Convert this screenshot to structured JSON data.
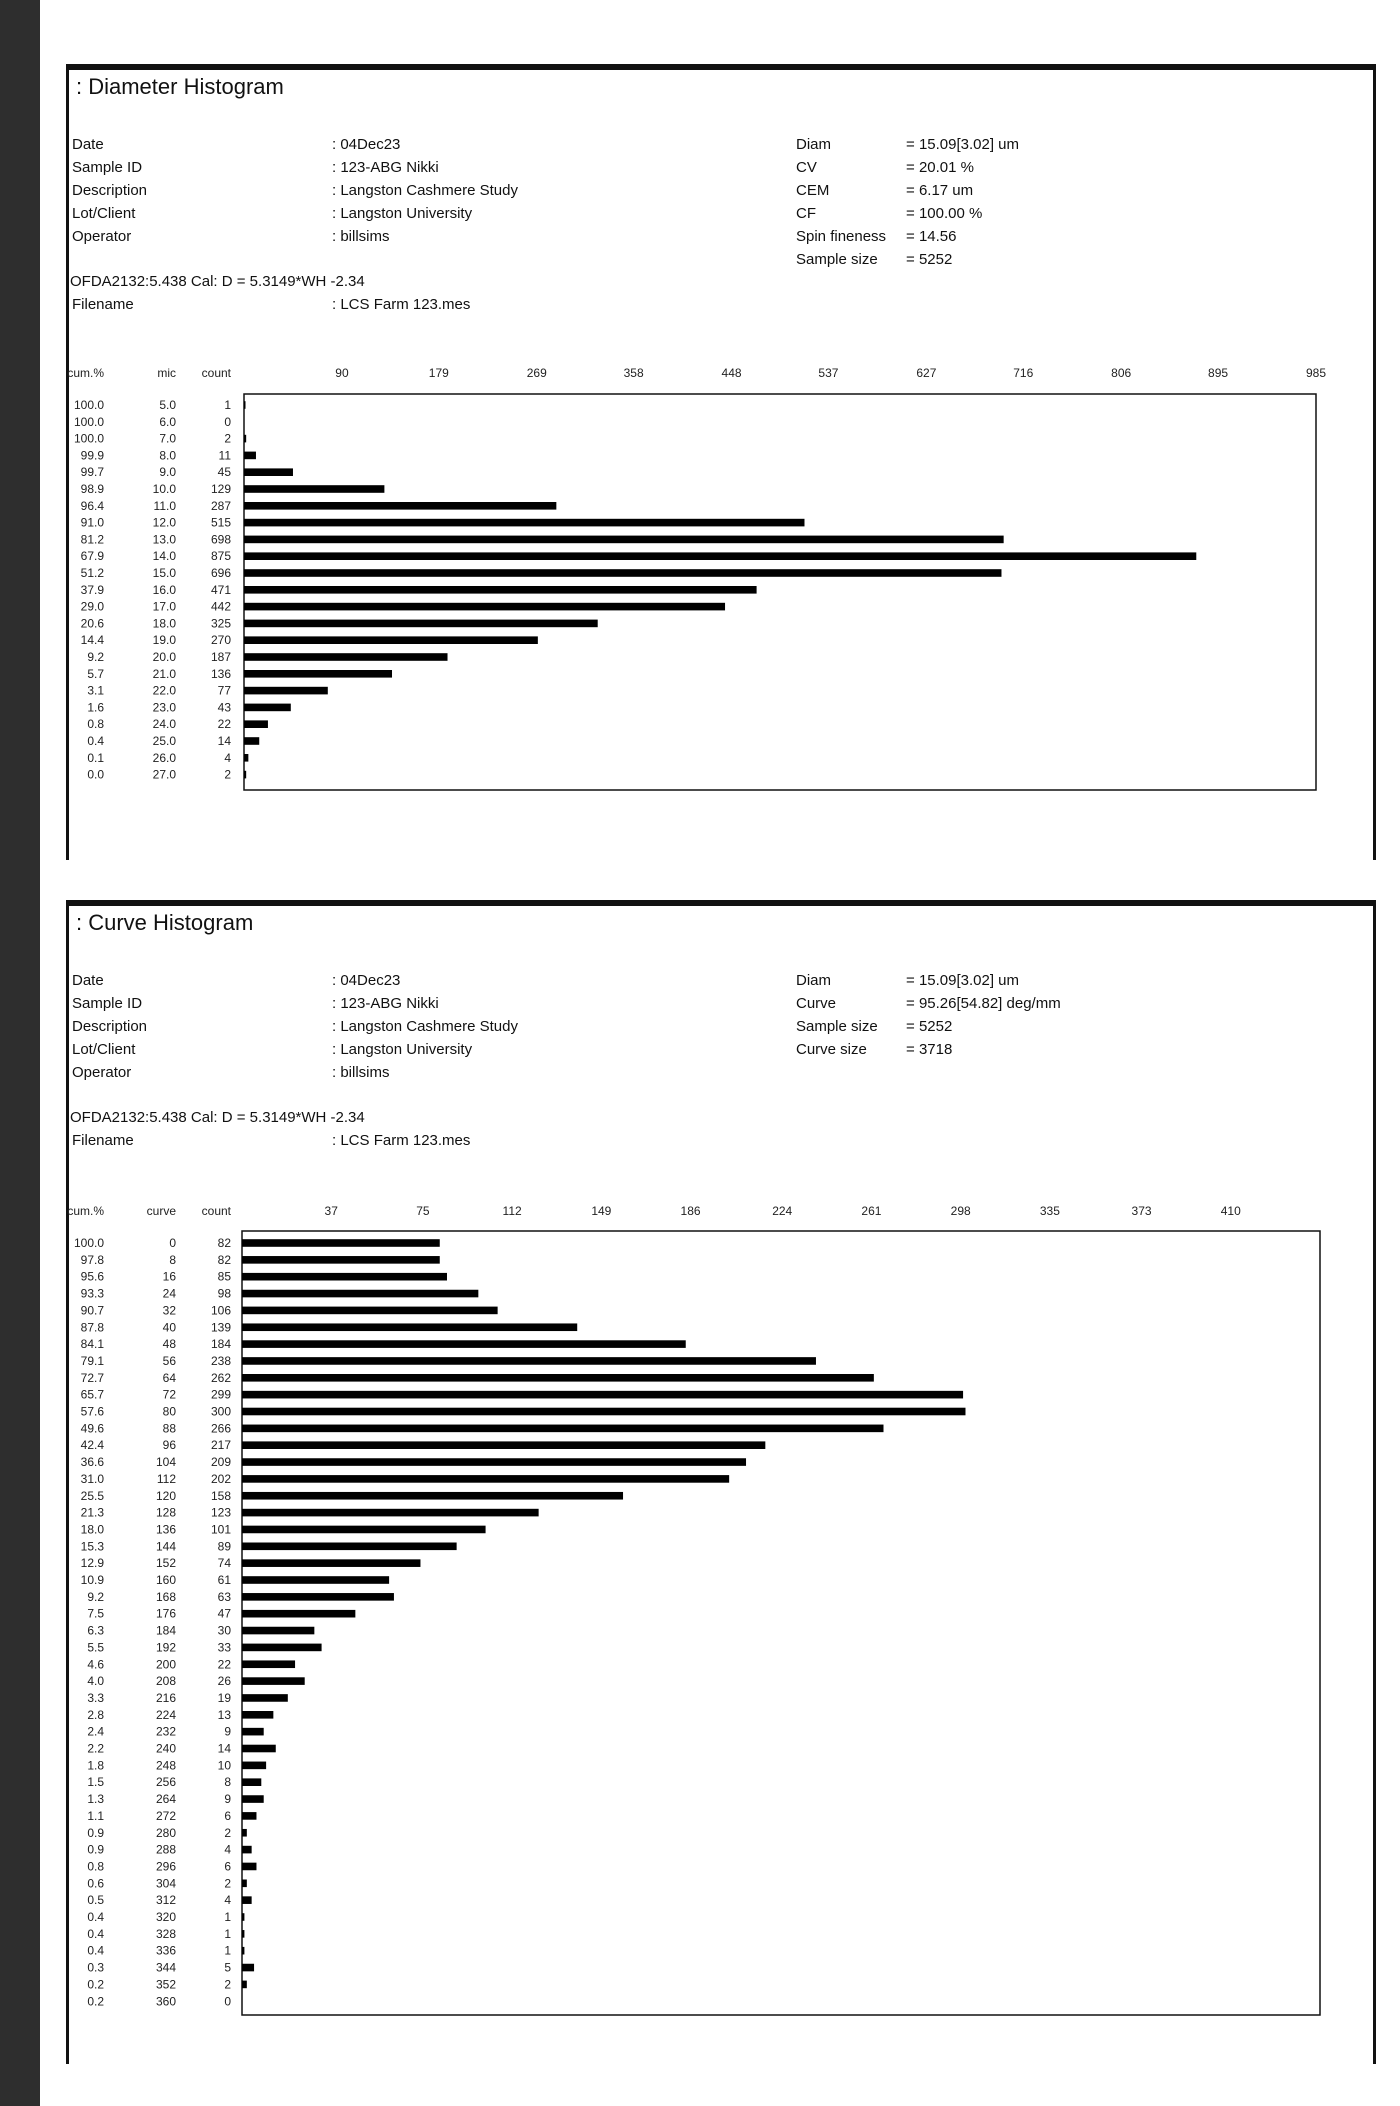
{
  "diameter": {
    "title": ": Diameter Histogram",
    "meta": [
      {
        "label": "Date",
        "value": "04Dec23"
      },
      {
        "label": "Sample ID",
        "value": "123-ABG Nikki"
      },
      {
        "label": "Description",
        "value": "Langston Cashmere Study"
      },
      {
        "label": "Lot/Client",
        "value": "Langston University"
      },
      {
        "label": "Operator",
        "value": "billsims"
      }
    ],
    "stats": [
      {
        "label": "Diam",
        "value": "15.09[3.02] um"
      },
      {
        "label": "CV",
        "value": "20.01 %"
      },
      {
        "label": "CEM",
        "value": "6.17 um"
      },
      {
        "label": "CF",
        "value": "100.00 %"
      },
      {
        "label": "Spin fineness",
        "value": "14.56"
      },
      {
        "label": "Sample size",
        "value": "5252"
      }
    ],
    "calibration": "OFDA2132:5.438 Cal: D = 5.3149*WH -2.34",
    "filename_label": "Filename",
    "filename": "LCS Farm 123.mes"
  },
  "curve": {
    "title": ": Curve Histogram",
    "meta": [
      {
        "label": "Date",
        "value": "04Dec23"
      },
      {
        "label": "Sample ID",
        "value": "123-ABG Nikki"
      },
      {
        "label": "Description",
        "value": "Langston Cashmere Study"
      },
      {
        "label": "Lot/Client",
        "value": "Langston University"
      },
      {
        "label": "Operator",
        "value": "billsims"
      }
    ],
    "stats": [
      {
        "label": "Diam",
        "value": "15.09[3.02] um"
      },
      {
        "label": "Curve",
        "value": "95.26[54.82] deg/mm"
      },
      {
        "label": "Sample size",
        "value": "5252"
      },
      {
        "label": "Curve size",
        "value": "3718"
      }
    ],
    "calibration": "OFDA2132:5.438 Cal: D = 5.3149*WH -2.34",
    "filename_label": "Filename",
    "filename": "LCS Farm 123.mes"
  },
  "chart_data": [
    {
      "type": "bar",
      "orientation": "horizontal",
      "columns": [
        "cum.%",
        "mic",
        "count"
      ],
      "x_ticks": [
        "90",
        "179",
        "269",
        "358",
        "448",
        "537",
        "627",
        "716",
        "806",
        "895",
        "985"
      ],
      "xlim": [
        0,
        985
      ],
      "cum": [
        "100.0",
        "100.0",
        "100.0",
        "99.9",
        "99.7",
        "98.9",
        "96.4",
        "91.0",
        "81.2",
        "67.9",
        "51.2",
        "37.9",
        "29.0",
        "20.6",
        "14.4",
        "9.2",
        "5.7",
        "3.1",
        "1.6",
        "0.8",
        "0.4",
        "0.1",
        "0.0"
      ],
      "categories": [
        "5.0",
        "6.0",
        "7.0",
        "8.0",
        "9.0",
        "10.0",
        "11.0",
        "12.0",
        "13.0",
        "14.0",
        "15.0",
        "16.0",
        "17.0",
        "18.0",
        "19.0",
        "20.0",
        "21.0",
        "22.0",
        "23.0",
        "24.0",
        "25.0",
        "26.0",
        "27.0"
      ],
      "values": [
        1,
        0,
        2,
        11,
        45,
        129,
        287,
        515,
        698,
        875,
        696,
        471,
        442,
        325,
        270,
        187,
        136,
        77,
        43,
        22,
        14,
        4,
        2
      ]
    },
    {
      "type": "bar",
      "orientation": "horizontal",
      "columns": [
        "cum.%",
        "curve",
        "count"
      ],
      "x_ticks": [
        "37",
        "75",
        "112",
        "149",
        "186",
        "224",
        "261",
        "298",
        "335",
        "373",
        "410"
      ],
      "xlim": [
        0,
        447
      ],
      "cum": [
        "100.0",
        "97.8",
        "95.6",
        "93.3",
        "90.7",
        "87.8",
        "84.1",
        "79.1",
        "72.7",
        "65.7",
        "57.6",
        "49.6",
        "42.4",
        "36.6",
        "31.0",
        "25.5",
        "21.3",
        "18.0",
        "15.3",
        "12.9",
        "10.9",
        "9.2",
        "7.5",
        "6.3",
        "5.5",
        "4.6",
        "4.0",
        "3.3",
        "2.8",
        "2.4",
        "2.2",
        "1.8",
        "1.5",
        "1.3",
        "1.1",
        "0.9",
        "0.9",
        "0.8",
        "0.6",
        "0.5",
        "0.4",
        "0.4",
        "0.4",
        "0.3",
        "0.2",
        "0.2"
      ],
      "categories": [
        "0",
        "8",
        "16",
        "24",
        "32",
        "40",
        "48",
        "56",
        "64",
        "72",
        "80",
        "88",
        "96",
        "104",
        "112",
        "120",
        "128",
        "136",
        "144",
        "152",
        "160",
        "168",
        "176",
        "184",
        "192",
        "200",
        "208",
        "216",
        "224",
        "232",
        "240",
        "248",
        "256",
        "264",
        "272",
        "280",
        "288",
        "296",
        "304",
        "312",
        "320",
        "328",
        "336",
        "344",
        "352",
        "360"
      ],
      "values": [
        82,
        82,
        85,
        98,
        106,
        139,
        184,
        238,
        262,
        299,
        300,
        266,
        217,
        209,
        202,
        158,
        123,
        101,
        89,
        74,
        61,
        63,
        47,
        30,
        33,
        22,
        26,
        19,
        13,
        9,
        14,
        10,
        8,
        9,
        6,
        2,
        4,
        6,
        2,
        4,
        1,
        1,
        1,
        5,
        2,
        0
      ]
    }
  ]
}
